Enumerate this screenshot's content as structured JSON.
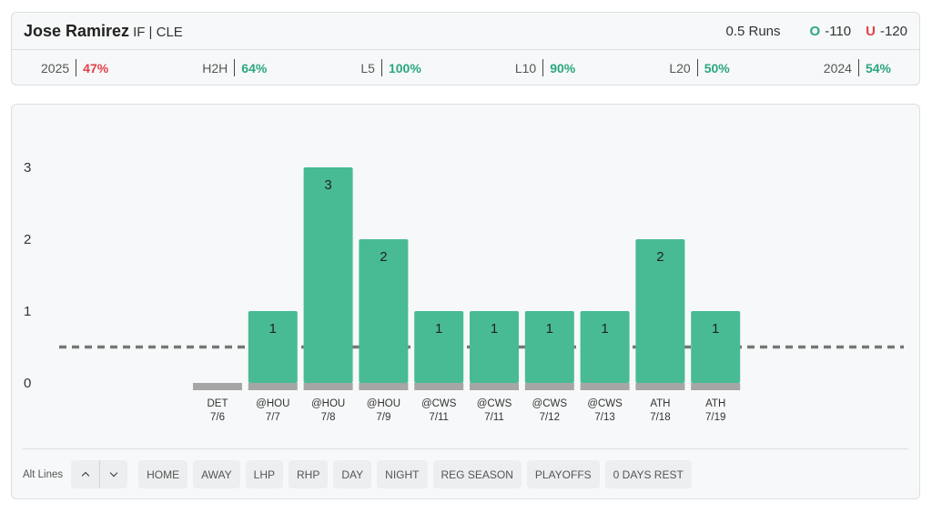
{
  "header": {
    "player_name": "Jose Ramirez",
    "player_meta": "IF | CLE",
    "line_label": "0.5 Runs",
    "over": {
      "letter": "O",
      "odds": "-110",
      "color": "#2aa77e"
    },
    "under": {
      "letter": "U",
      "odds": "-120",
      "color": "#e0424a"
    }
  },
  "stats": [
    {
      "label": "2025",
      "value": "47%",
      "status": "bad"
    },
    {
      "label": "H2H",
      "value": "64%",
      "status": "good"
    },
    {
      "label": "L5",
      "value": "100%",
      "status": "good"
    },
    {
      "label": "L10",
      "value": "90%",
      "status": "good"
    },
    {
      "label": "L20",
      "value": "50%",
      "status": "good"
    },
    {
      "label": "2024",
      "value": "54%",
      "status": "good"
    }
  ],
  "chart_data": {
    "type": "bar",
    "categories": [
      "DET 7/6",
      "@HOU 7/7",
      "@HOU 7/8",
      "@HOU 7/9",
      "@CWS 7/11",
      "@CWS 7/11",
      "@CWS 7/12",
      "@CWS 7/13",
      "ATH 7/18",
      "ATH 7/19"
    ],
    "opponents": [
      "DET",
      "@HOU",
      "@HOU",
      "@HOU",
      "@CWS",
      "@CWS",
      "@CWS",
      "@CWS",
      "ATH",
      "ATH"
    ],
    "dates": [
      "7/6",
      "7/7",
      "7/8",
      "7/9",
      "7/11",
      "7/11",
      "7/12",
      "7/13",
      "7/18",
      "7/19"
    ],
    "values": [
      0,
      1,
      3,
      2,
      1,
      1,
      1,
      1,
      2,
      1
    ],
    "value_labels": [
      "",
      "1",
      "3",
      "2",
      "1",
      "1",
      "1",
      "1",
      "2",
      "1"
    ],
    "line": 0.5,
    "yticks": [
      "0",
      "1",
      "2",
      "3"
    ],
    "ylim": [
      0,
      3
    ],
    "grid": false,
    "colors": {
      "hit": "#48bb94",
      "miss": "#a6a6a6",
      "base": "#a6a6a6",
      "line": "#777777"
    }
  },
  "filters": {
    "alt_lines_label": "Alt Lines",
    "up_icon": "chevron-up-icon",
    "down_icon": "chevron-down-icon",
    "buttons": [
      "HOME",
      "AWAY",
      "LHP",
      "RHP",
      "DAY",
      "NIGHT",
      "REG SEASON",
      "PLAYOFFS",
      "0 DAYS REST"
    ]
  }
}
